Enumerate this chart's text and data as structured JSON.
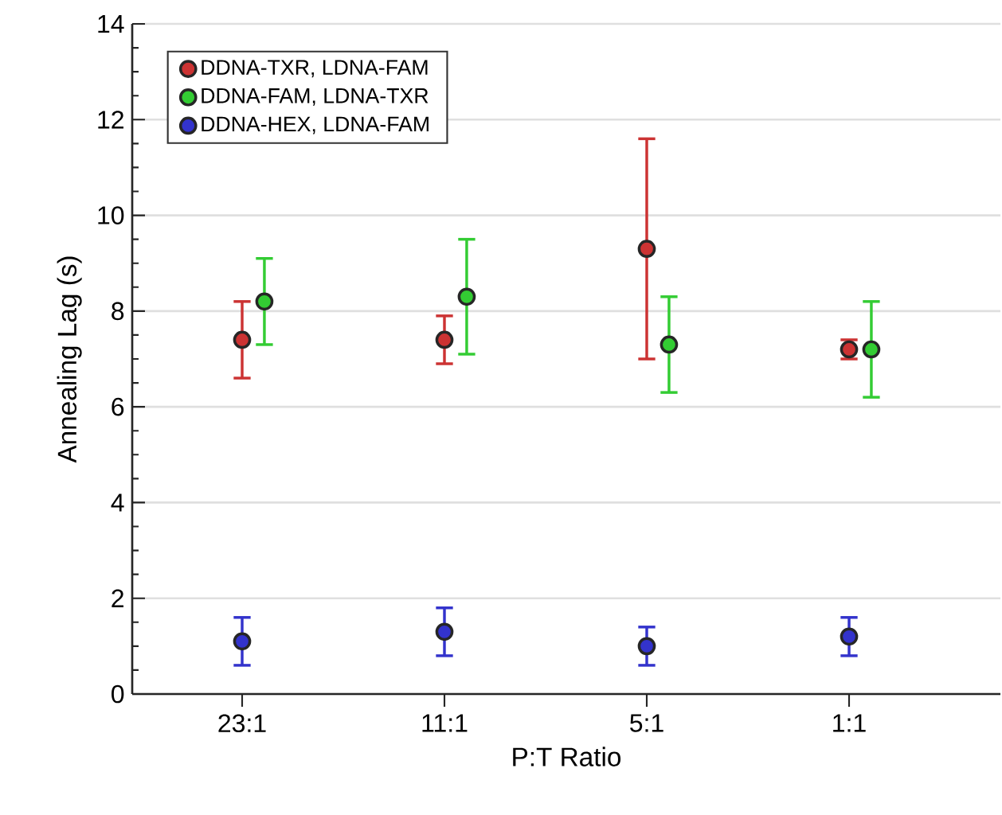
{
  "chart_data": {
    "type": "scatter",
    "xlabel": "P:T Ratio",
    "ylabel": "Annealing Lag (s)",
    "categories": [
      "23:1",
      "11:1",
      "5:1",
      "1:1"
    ],
    "ylim": [
      0,
      14
    ],
    "yticks": [
      0,
      2,
      4,
      6,
      8,
      10,
      12,
      14
    ],
    "grid": "y",
    "legend": "top left",
    "marker": "circle",
    "series": [
      {
        "name": "DDNA-TXR, LDNA-FAM",
        "color": "#cc3333",
        "values": [
          7.4,
          7.4,
          9.3,
          7.2
        ],
        "errors": [
          [
            6.6,
            8.2
          ],
          [
            6.9,
            7.9
          ],
          [
            7.0,
            11.6
          ],
          [
            7.0,
            7.4
          ]
        ]
      },
      {
        "name": "DDNA-FAM, LDNA-TXR",
        "color": "#33cc33",
        "values": [
          8.2,
          8.3,
          7.3,
          7.2
        ],
        "errors": [
          [
            7.3,
            9.1
          ],
          [
            7.1,
            9.5
          ],
          [
            6.3,
            8.3
          ],
          [
            6.2,
            8.2
          ]
        ]
      },
      {
        "name": "DDNA-HEX, LDNA-FAM",
        "color": "#3333cc",
        "values": [
          1.1,
          1.3,
          1.0,
          1.2
        ],
        "errors": [
          [
            0.6,
            1.6
          ],
          [
            0.8,
            1.8
          ],
          [
            0.6,
            1.4
          ],
          [
            0.8,
            1.6
          ]
        ]
      }
    ]
  }
}
